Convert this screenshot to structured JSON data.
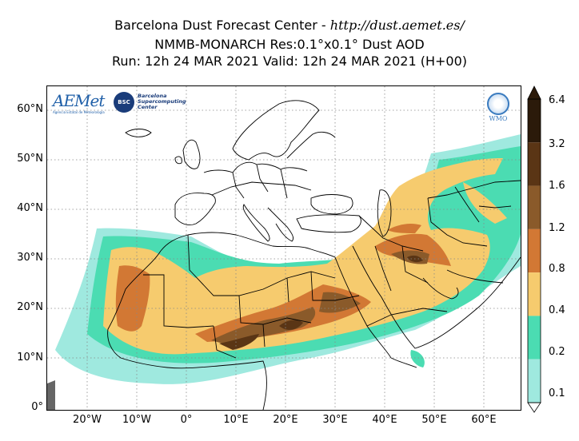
{
  "title": {
    "line1_prefix": "Barcelona Dust Forecast Center - ",
    "line1_url": "http://dust.aemet.es/",
    "line2": "NMMB-MONARCH   Res:0.1°x0.1°   Dust AOD",
    "line3": "Run: 12h 24 MAR 2021   Valid: 12h 24 MAR 2021 (H+00)"
  },
  "logos": {
    "aemet_name": "AEMet",
    "aemet_sub": "Agencia Estatal de Meteorología",
    "bsc_short": "BSC",
    "bsc_text": "Barcelona Supercomputing Center",
    "wmo": "WMO"
  },
  "axes": {
    "lat_ticks": [
      "60°N",
      "50°N",
      "40°N",
      "30°N",
      "20°N",
      "10°N",
      "0°"
    ],
    "lon_ticks": [
      "20°W",
      "10°W",
      "0°",
      "10°E",
      "20°E",
      "30°E",
      "40°E",
      "50°E",
      "60°E"
    ]
  },
  "colorbar": {
    "labels": [
      "6.4",
      "3.2",
      "1.6",
      "1.2",
      "0.8",
      "0.4",
      "0.2",
      "0.1"
    ],
    "colors": [
      "#2b1a0a",
      "#5a3515",
      "#8a5a2a",
      "#d27834",
      "#f6cb6e",
      "#4bdcb2",
      "#9fe9df"
    ]
  },
  "chart_data": {
    "type": "heatmap",
    "variable": "Dust AOD",
    "region": {
      "lon": [
        -29,
        67
      ],
      "lat": [
        0,
        66
      ]
    },
    "levels": [
      0.1,
      0.2,
      0.4,
      0.8,
      1.2,
      1.6,
      3.2,
      6.4
    ],
    "grid_lines": true
  }
}
